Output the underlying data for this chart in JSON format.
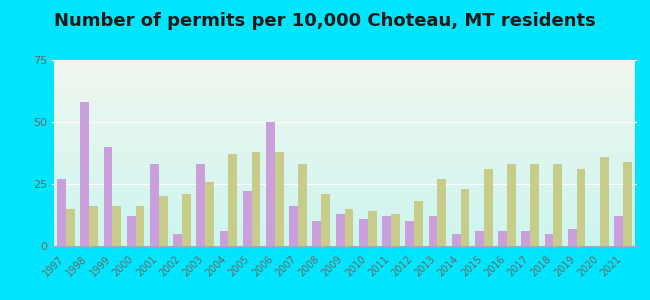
{
  "title": "Number of permits per 10,000 Choteau, MT residents",
  "years": [
    1997,
    1998,
    1999,
    2000,
    2001,
    2002,
    2003,
    2004,
    2005,
    2006,
    2007,
    2008,
    2009,
    2010,
    2011,
    2012,
    2013,
    2014,
    2015,
    2016,
    2017,
    2018,
    2019,
    2020,
    2021
  ],
  "choteau": [
    27,
    58,
    40,
    12,
    33,
    5,
    33,
    6,
    22,
    50,
    16,
    10,
    13,
    11,
    12,
    10,
    12,
    5,
    6,
    6,
    6,
    5,
    7,
    0,
    12
  ],
  "montana": [
    15,
    16,
    16,
    16,
    20,
    21,
    26,
    37,
    38,
    38,
    33,
    21,
    15,
    14,
    13,
    18,
    27,
    23,
    31,
    33,
    33,
    33,
    31,
    36,
    34
  ],
  "choteau_color": "#c9a0dc",
  "montana_color": "#c8cc8a",
  "ylim": [
    0,
    75
  ],
  "yticks": [
    0,
    25,
    50,
    75
  ],
  "background_outer": "#00e5ff",
  "background_inner_top_left": "#f0f7ee",
  "background_inner_top_right": "#e8f5e0",
  "background_inner_bottom": "#cdf5f0",
  "title_fontsize": 13
}
